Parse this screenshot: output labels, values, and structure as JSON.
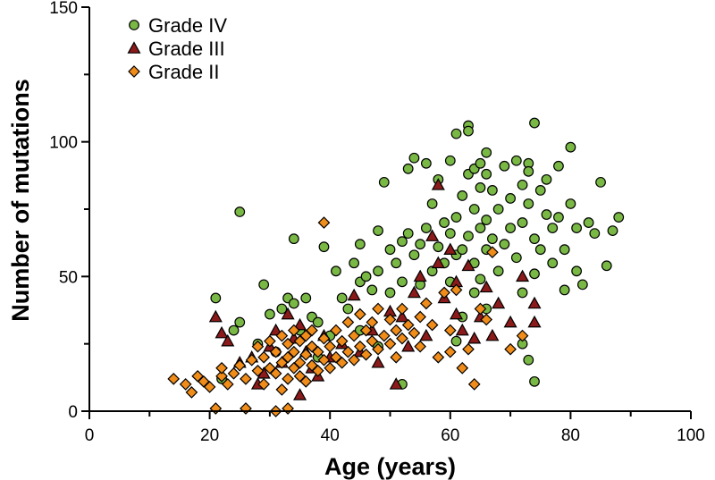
{
  "chart_data": {
    "type": "scatter",
    "title": "",
    "xlabel": "Age (years)",
    "ylabel": "Number of mutations",
    "xlim": [
      0,
      100
    ],
    "ylim": [
      0,
      150
    ],
    "xticks": [
      "0",
      "20",
      "40",
      "60",
      "80",
      "100"
    ],
    "yticks": [
      "0",
      "50",
      "100",
      "150"
    ],
    "grid": false,
    "legend_position": "top-left",
    "series": [
      {
        "name": "Grade IV",
        "marker": "circle",
        "color": "#79b845",
        "points": [
          [
            21,
            42
          ],
          [
            22,
            12
          ],
          [
            24,
            30
          ],
          [
            25,
            33
          ],
          [
            25,
            74
          ],
          [
            28,
            25
          ],
          [
            29,
            47
          ],
          [
            30,
            36
          ],
          [
            31,
            22
          ],
          [
            32,
            38
          ],
          [
            33,
            42
          ],
          [
            34,
            64
          ],
          [
            34,
            40
          ],
          [
            35,
            30
          ],
          [
            36,
            42
          ],
          [
            37,
            35
          ],
          [
            38,
            33
          ],
          [
            38,
            20
          ],
          [
            39,
            61
          ],
          [
            40,
            28
          ],
          [
            41,
            52
          ],
          [
            42,
            42
          ],
          [
            43,
            38
          ],
          [
            44,
            55
          ],
          [
            45,
            48
          ],
          [
            45,
            62
          ],
          [
            46,
            50
          ],
          [
            47,
            45
          ],
          [
            48,
            52
          ],
          [
            48,
            67
          ],
          [
            49,
            85
          ],
          [
            50,
            60
          ],
          [
            50,
            44
          ],
          [
            51,
            55
          ],
          [
            52,
            48
          ],
          [
            52,
            63
          ],
          [
            53,
            66
          ],
          [
            53,
            90
          ],
          [
            54,
            94
          ],
          [
            54,
            58
          ],
          [
            55,
            62
          ],
          [
            55,
            47
          ],
          [
            56,
            92
          ],
          [
            56,
            68
          ],
          [
            57,
            52
          ],
          [
            57,
            77
          ],
          [
            58,
            61
          ],
          [
            58,
            86
          ],
          [
            59,
            55
          ],
          [
            59,
            70
          ],
          [
            60,
            93
          ],
          [
            60,
            66
          ],
          [
            60,
            48
          ],
          [
            61,
            103
          ],
          [
            61,
            72
          ],
          [
            61,
            58
          ],
          [
            62,
            60
          ],
          [
            62,
            80
          ],
          [
            63,
            106
          ],
          [
            63,
            104
          ],
          [
            63,
            65
          ],
          [
            63,
            88
          ],
          [
            64,
            90
          ],
          [
            64,
            75
          ],
          [
            64,
            55
          ],
          [
            65,
            92
          ],
          [
            65,
            83
          ],
          [
            65,
            68
          ],
          [
            65,
            49
          ],
          [
            66,
            96
          ],
          [
            66,
            88
          ],
          [
            66,
            71
          ],
          [
            66,
            60
          ],
          [
            67,
            82
          ],
          [
            67,
            64
          ],
          [
            68,
            52
          ],
          [
            68,
            75
          ],
          [
            69,
            91
          ],
          [
            69,
            62
          ],
          [
            70,
            79
          ],
          [
            70,
            68
          ],
          [
            71,
            93
          ],
          [
            71,
            57
          ],
          [
            72,
            84
          ],
          [
            72,
            70
          ],
          [
            72,
            44
          ],
          [
            73,
            92
          ],
          [
            73,
            89
          ],
          [
            73,
            77
          ],
          [
            74,
            107
          ],
          [
            74,
            64
          ],
          [
            74,
            51
          ],
          [
            75,
            82
          ],
          [
            75,
            60
          ],
          [
            76,
            86
          ],
          [
            76,
            73
          ],
          [
            77,
            68
          ],
          [
            77,
            55
          ],
          [
            78,
            91
          ],
          [
            78,
            72
          ],
          [
            79,
            60
          ],
          [
            79,
            45
          ],
          [
            80,
            98
          ],
          [
            80,
            77
          ],
          [
            81,
            68
          ],
          [
            81,
            52
          ],
          [
            82,
            47
          ],
          [
            83,
            70
          ],
          [
            84,
            66
          ],
          [
            85,
            85
          ],
          [
            86,
            54
          ],
          [
            87,
            67
          ],
          [
            88,
            72
          ],
          [
            72,
            25
          ],
          [
            73,
            19
          ],
          [
            74,
            11
          ],
          [
            62,
            35
          ],
          [
            64,
            44
          ],
          [
            66,
            38
          ],
          [
            61,
            26
          ],
          [
            52,
            10
          ],
          [
            48,
            24
          ],
          [
            45,
            30
          ]
        ]
      },
      {
        "name": "Grade III",
        "marker": "triangle",
        "color": "#8b1a1a",
        "points": [
          [
            21,
            35
          ],
          [
            22,
            29
          ],
          [
            23,
            26
          ],
          [
            25,
            18
          ],
          [
            27,
            20
          ],
          [
            29,
            14
          ],
          [
            30,
            24
          ],
          [
            31,
            30
          ],
          [
            32,
            18
          ],
          [
            33,
            36
          ],
          [
            34,
            27
          ],
          [
            35,
            32
          ],
          [
            36,
            22
          ],
          [
            37,
            16
          ],
          [
            38,
            13
          ],
          [
            39,
            28
          ],
          [
            40,
            20
          ],
          [
            42,
            25
          ],
          [
            44,
            43
          ],
          [
            45,
            22
          ],
          [
            47,
            30
          ],
          [
            48,
            18
          ],
          [
            50,
            37
          ],
          [
            51,
            10
          ],
          [
            52,
            35
          ],
          [
            53,
            24
          ],
          [
            54,
            44
          ],
          [
            55,
            50
          ],
          [
            56,
            28
          ],
          [
            57,
            65
          ],
          [
            58,
            84
          ],
          [
            58,
            55
          ],
          [
            59,
            42
          ],
          [
            60,
            60
          ],
          [
            61,
            48
          ],
          [
            61,
            36
          ],
          [
            62,
            30
          ],
          [
            63,
            54
          ],
          [
            64,
            27
          ],
          [
            65,
            35
          ],
          [
            66,
            46
          ],
          [
            67,
            28
          ],
          [
            68,
            40
          ],
          [
            70,
            33
          ],
          [
            72,
            50
          ],
          [
            74,
            40
          ],
          [
            74,
            33
          ],
          [
            35,
            6
          ],
          [
            28,
            10
          ]
        ]
      },
      {
        "name": "Grade II",
        "marker": "diamond",
        "color": "#f08c1a",
        "points": [
          [
            14,
            12
          ],
          [
            16,
            10
          ],
          [
            17,
            7
          ],
          [
            18,
            13
          ],
          [
            19,
            11
          ],
          [
            20,
            9
          ],
          [
            21,
            1
          ],
          [
            22,
            13
          ],
          [
            22,
            16
          ],
          [
            23,
            10
          ],
          [
            24,
            14
          ],
          [
            25,
            17
          ],
          [
            26,
            12
          ],
          [
            26,
            1
          ],
          [
            27,
            19
          ],
          [
            28,
            15
          ],
          [
            28,
            24
          ],
          [
            29,
            10
          ],
          [
            29,
            20
          ],
          [
            30,
            16
          ],
          [
            30,
            26
          ],
          [
            31,
            14
          ],
          [
            31,
            22
          ],
          [
            32,
            18
          ],
          [
            32,
            28
          ],
          [
            32,
            8
          ],
          [
            33,
            20
          ],
          [
            33,
            25
          ],
          [
            33,
            12
          ],
          [
            34,
            16
          ],
          [
            34,
            30
          ],
          [
            34,
            22
          ],
          [
            35,
            18
          ],
          [
            35,
            26
          ],
          [
            35,
            13
          ],
          [
            36,
            21
          ],
          [
            36,
            28
          ],
          [
            36,
            11
          ],
          [
            37,
            17
          ],
          [
            37,
            24
          ],
          [
            37,
            30
          ],
          [
            38,
            15
          ],
          [
            38,
            22
          ],
          [
            39,
            19
          ],
          [
            39,
            70
          ],
          [
            39,
            27
          ],
          [
            40,
            16
          ],
          [
            40,
            24
          ],
          [
            41,
            20
          ],
          [
            41,
            30
          ],
          [
            42,
            18
          ],
          [
            42,
            26
          ],
          [
            43,
            22
          ],
          [
            43,
            33
          ],
          [
            44,
            19
          ],
          [
            44,
            28
          ],
          [
            45,
            24
          ],
          [
            45,
            36
          ],
          [
            46,
            21
          ],
          [
            46,
            30
          ],
          [
            47,
            26
          ],
          [
            47,
            33
          ],
          [
            48,
            23
          ],
          [
            48,
            38
          ],
          [
            49,
            28
          ],
          [
            50,
            25
          ],
          [
            50,
            34
          ],
          [
            51,
            30
          ],
          [
            51,
            20
          ],
          [
            52,
            27
          ],
          [
            52,
            38
          ],
          [
            53,
            32
          ],
          [
            54,
            29
          ],
          [
            55,
            35
          ],
          [
            55,
            24
          ],
          [
            56,
            40
          ],
          [
            57,
            32
          ],
          [
            58,
            20
          ],
          [
            59,
            44
          ],
          [
            60,
            30
          ],
          [
            60,
            22
          ],
          [
            61,
            45
          ],
          [
            62,
            16
          ],
          [
            63,
            23
          ],
          [
            64,
            10
          ],
          [
            65,
            38
          ],
          [
            66,
            34
          ],
          [
            67,
            59
          ],
          [
            70,
            23
          ],
          [
            72,
            28
          ],
          [
            31,
            0
          ],
          [
            33,
            1
          ]
        ]
      }
    ]
  }
}
